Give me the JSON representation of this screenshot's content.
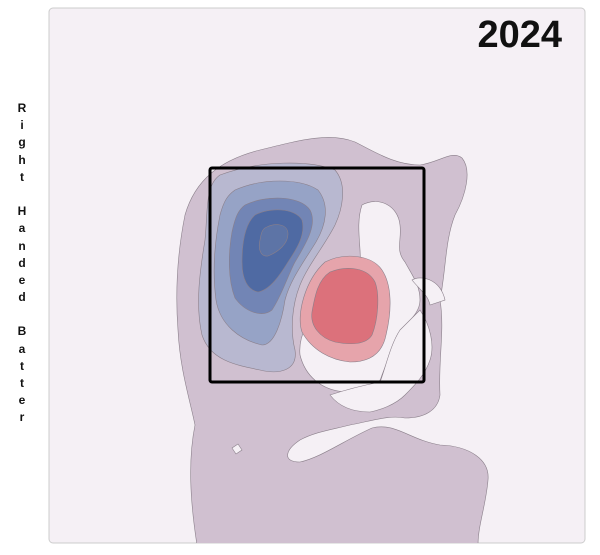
{
  "chart_data": {
    "type": "heatmap",
    "title": "2024",
    "ylabel": "Right Handed Batter",
    "xlabel": "",
    "grid": false,
    "legend": "none",
    "strike_zone": true,
    "colors": {
      "background": "#f5f0f5",
      "low_density": "#d0c0d0",
      "blue_levels": [
        "#b8b8d0",
        "#96a3c6",
        "#7285b5",
        "#4f6aa3",
        "#5d74a6"
      ],
      "red_levels": [
        "#e6a4ab",
        "#dc717b"
      ],
      "strike_zone": "#000000"
    }
  }
}
